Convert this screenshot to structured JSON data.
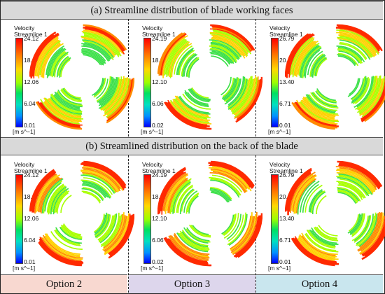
{
  "headers": {
    "top": "(a) Streamline distribution of blade working faces",
    "middle": "(b) Streamlined distribution on the back of the blade"
  },
  "legend_title": [
    "Velocity",
    "Streamline 1"
  ],
  "unit": "[m s^−1]",
  "options": [
    {
      "label": "Option 2",
      "color": "#f8d8d0",
      "ticks": [
        "24.12",
        "18.09",
        "12.06",
        "6.04",
        "0.01"
      ]
    },
    {
      "label": "Option 3",
      "color": "#ddd6ec",
      "ticks": [
        "24.19",
        "18.15",
        "12.10",
        "6.06",
        "0.02"
      ]
    },
    {
      "label": "Option 4",
      "color": "#c9e6ee",
      "ticks": [
        "26.79",
        "20.09",
        "13.40",
        "6.71",
        "0.01"
      ]
    }
  ]
}
